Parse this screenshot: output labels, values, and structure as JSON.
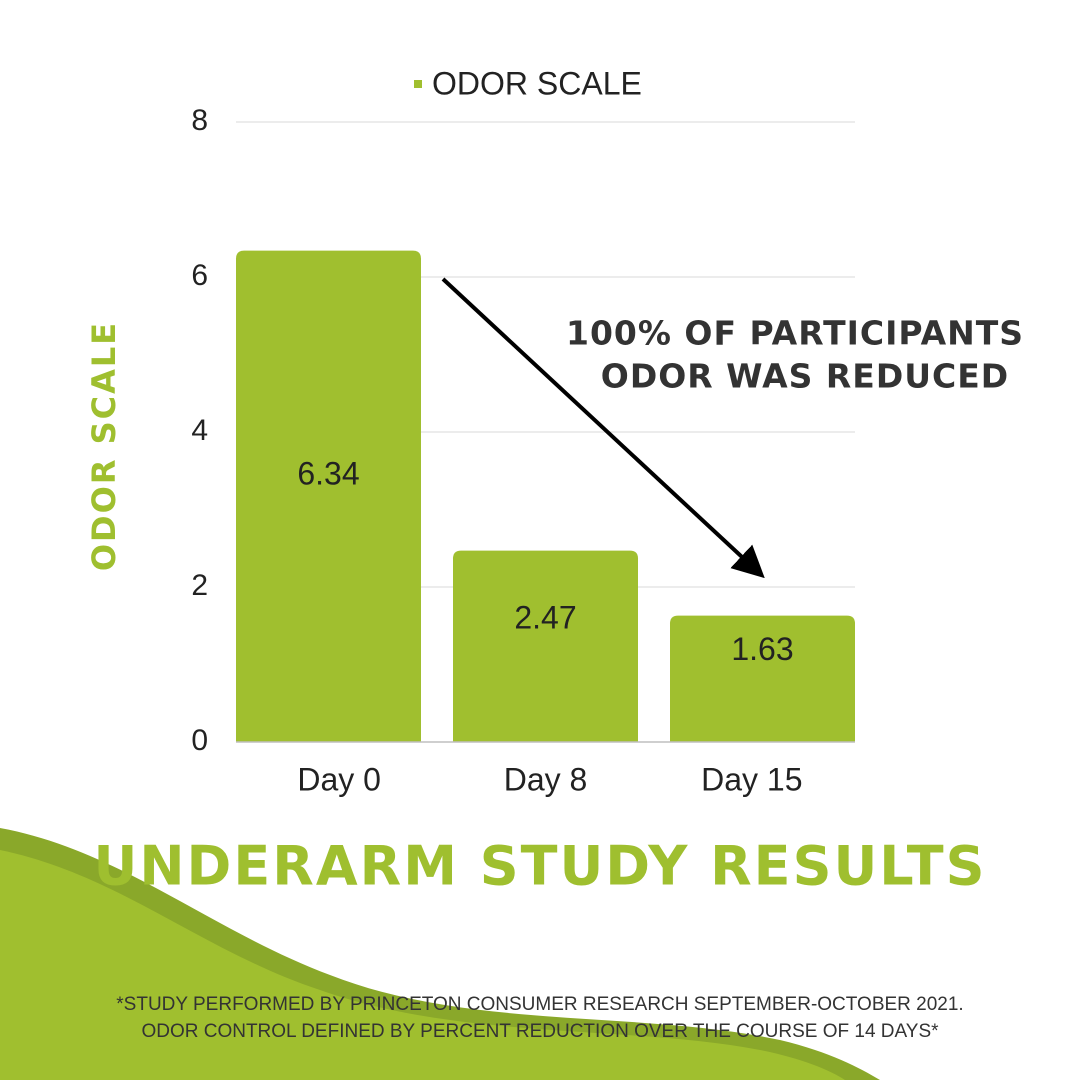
{
  "chart_data": {
    "type": "bar",
    "title": "UNDERARM STUDY RESULTS",
    "y_label": "ODOR SCALE",
    "categories": [
      "Day 0",
      "Day 8",
      "Day 15"
    ],
    "series": [
      {
        "name": "ODOR SCALE",
        "color": "#a0bf2f",
        "values": [
          6.34,
          2.47,
          1.63
        ]
      }
    ],
    "ylim": [
      0,
      8
    ],
    "yticks": [
      0,
      2,
      4,
      6,
      8
    ],
    "grid": true,
    "legend": "top",
    "annotation": [
      "100% OF PARTICIPANTS",
      "ODOR WAS REDUCED"
    ],
    "footnote": [
      "*STUDY PERFORMED BY PRINCETON CONSUMER RESEARCH SEPTEMBER-OCTOBER 2021.",
      "ODOR CONTROL DEFINED BY PERCENT REDUCTION OVER THE COURSE OF 14 DAYS*"
    ]
  }
}
